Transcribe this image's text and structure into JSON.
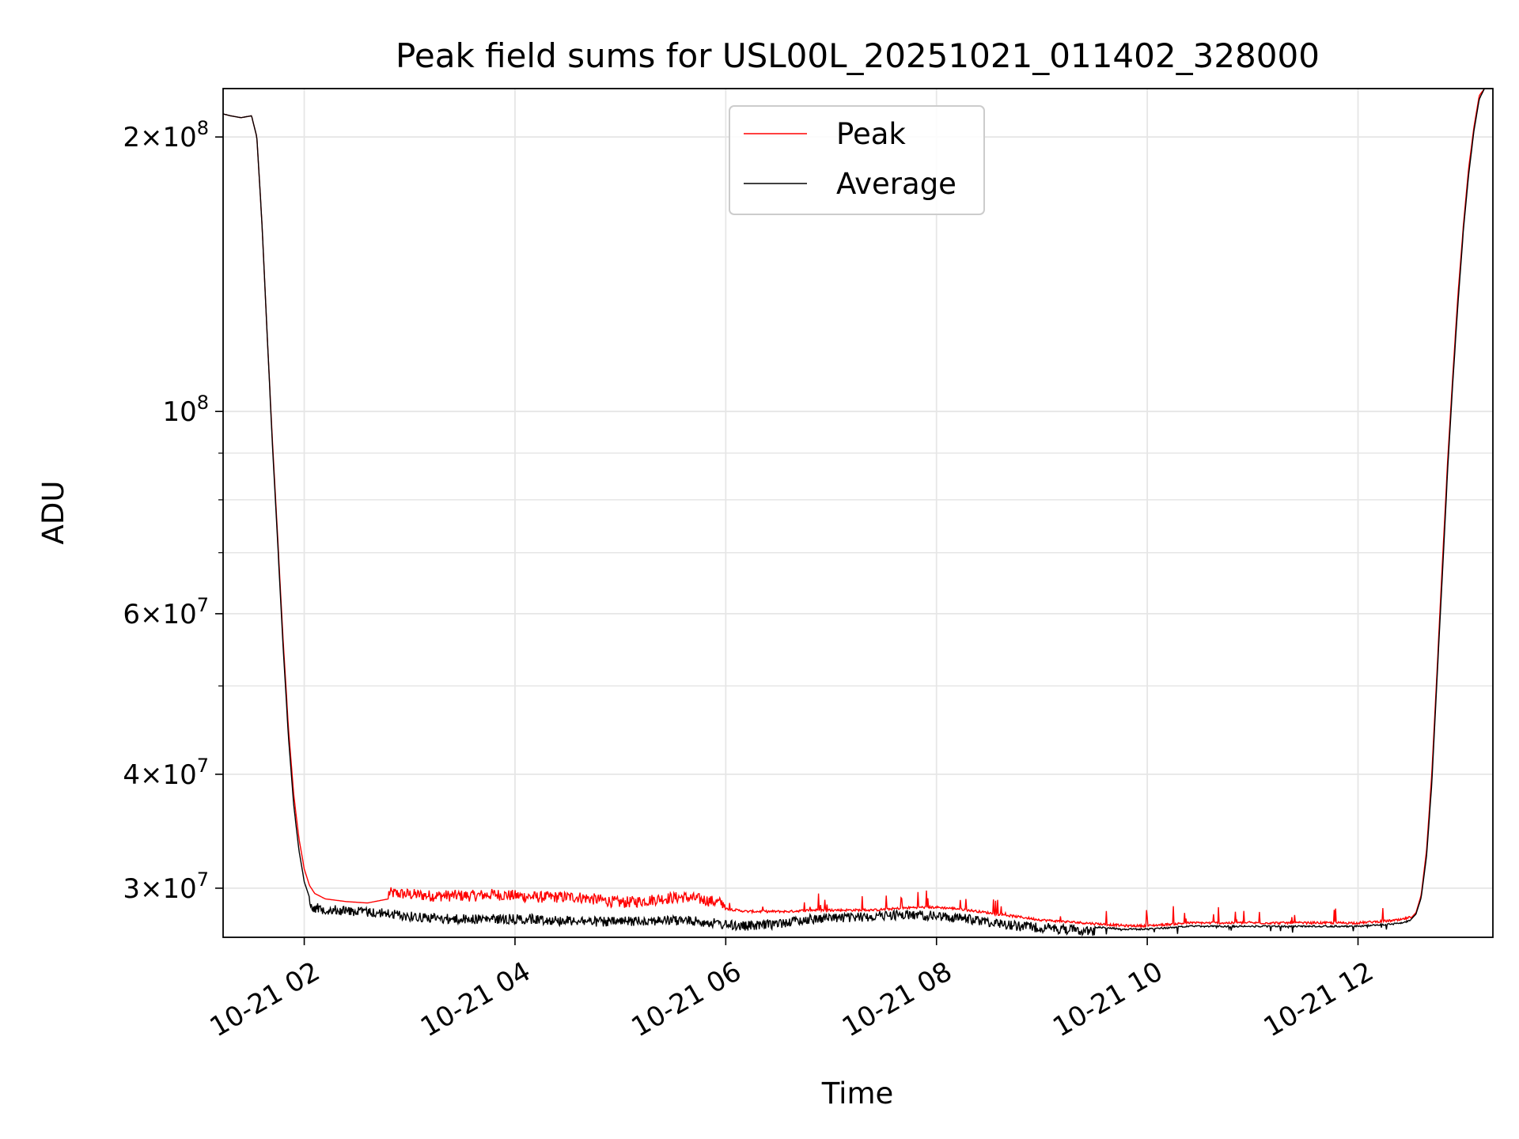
{
  "chart_data": {
    "type": "line",
    "title": "Peak field sums for USL00L_20251021_011402_328000",
    "xlabel": "Time",
    "ylabel": "ADU",
    "yscale": "log",
    "ylim": [
      26500000,
      226000000
    ],
    "xlim_hours": [
      1.23,
      13.28
    ],
    "grid": true,
    "legend_position": "upper center",
    "x_ticks": [
      {
        "hour": 2,
        "label": "10-21 02"
      },
      {
        "hour": 4,
        "label": "10-21 04"
      },
      {
        "hour": 6,
        "label": "10-21 06"
      },
      {
        "hour": 8,
        "label": "10-21 08"
      },
      {
        "hour": 10,
        "label": "10-21 10"
      },
      {
        "hour": 12,
        "label": "10-21 12"
      }
    ],
    "y_major_ticks": [
      {
        "value": 30000000,
        "mantissa": "3",
        "exponent": "7"
      },
      {
        "value": 40000000,
        "mantissa": "4",
        "exponent": "7"
      },
      {
        "value": 60000000,
        "mantissa": "6",
        "exponent": "7"
      },
      {
        "value": 100000000,
        "mantissa": "",
        "exponent": "8"
      },
      {
        "value": 200000000,
        "mantissa": "2",
        "exponent": "8"
      }
    ],
    "y_minor_ticks": [
      50000000,
      70000000,
      80000000,
      90000000
    ],
    "series": [
      {
        "name": "Peak",
        "color": "#ff0000",
        "x_hours": [
          1.23,
          1.3,
          1.4,
          1.5,
          1.55,
          1.6,
          1.65,
          1.7,
          1.75,
          1.8,
          1.85,
          1.9,
          1.95,
          2.0,
          2.05,
          2.1,
          2.2,
          2.4,
          2.6,
          2.8,
          3.0,
          3.2,
          3.4,
          3.6,
          3.8,
          4.0,
          4.2,
          4.4,
          4.6,
          4.8,
          5.0,
          5.2,
          5.4,
          5.6,
          5.8,
          6.0,
          6.2,
          6.4,
          6.6,
          6.8,
          7.0,
          7.2,
          7.4,
          7.6,
          7.8,
          8.0,
          8.2,
          8.4,
          8.6,
          8.8,
          9.0,
          9.2,
          9.4,
          9.6,
          9.8,
          10.0,
          10.2,
          10.4,
          10.6,
          10.8,
          11.0,
          11.2,
          11.4,
          11.6,
          11.8,
          12.0,
          12.2,
          12.4,
          12.5,
          12.55,
          12.6,
          12.65,
          12.7,
          12.75,
          12.8,
          12.85,
          12.9,
          12.95,
          13.0,
          13.05,
          13.1,
          13.15,
          13.2,
          13.28
        ],
        "values": [
          212000000,
          211000000,
          210000000,
          211000000,
          200000000,
          160000000,
          120000000,
          92000000,
          72000000,
          56000000,
          45000000,
          38000000,
          34000000,
          31500000,
          30200000,
          29600000,
          29200000,
          29000000,
          28900000,
          29200000,
          29100000,
          29000000,
          29000000,
          29000000,
          29100000,
          29000000,
          28900000,
          28900000,
          28900000,
          28700000,
          28500000,
          28600000,
          28800000,
          28900000,
          28700000,
          28400000,
          28200000,
          28200000,
          28200000,
          28300000,
          28300000,
          28300000,
          28300000,
          28400000,
          28500000,
          28500000,
          28400000,
          28200000,
          28000000,
          27800000,
          27600000,
          27500000,
          27400000,
          27300000,
          27200000,
          27200000,
          27300000,
          27400000,
          27400000,
          27400000,
          27400000,
          27400000,
          27400000,
          27400000,
          27400000,
          27400000,
          27500000,
          27600000,
          27800000,
          28200000,
          29500000,
          33000000,
          40000000,
          52000000,
          68000000,
          88000000,
          110000000,
          135000000,
          160000000,
          185000000,
          205000000,
          222000000,
          226000000,
          226000000
        ],
        "spike_values": [
          29900000,
          29800000,
          29600000,
          29400000,
          29300000,
          28900000,
          28700000,
          28600000,
          28700000
        ]
      },
      {
        "name": "Average",
        "color": "#000000",
        "x_hours": [
          1.23,
          1.3,
          1.4,
          1.5,
          1.55,
          1.6,
          1.65,
          1.7,
          1.75,
          1.8,
          1.85,
          1.9,
          1.95,
          2.0,
          2.05,
          2.1,
          2.2,
          2.4,
          2.6,
          2.8,
          3.0,
          3.2,
          3.4,
          3.6,
          3.8,
          4.0,
          4.2,
          4.4,
          4.6,
          4.8,
          5.0,
          5.2,
          5.4,
          5.6,
          5.8,
          6.0,
          6.2,
          6.4,
          6.6,
          6.8,
          7.0,
          7.2,
          7.4,
          7.6,
          7.8,
          8.0,
          8.2,
          8.4,
          8.6,
          8.8,
          9.0,
          9.2,
          9.4,
          9.6,
          9.8,
          10.0,
          10.2,
          10.4,
          10.6,
          10.8,
          11.0,
          11.2,
          11.4,
          11.6,
          11.8,
          12.0,
          12.2,
          12.4,
          12.5,
          12.55,
          12.6,
          12.65,
          12.7,
          12.75,
          12.8,
          12.85,
          12.9,
          12.95,
          13.0,
          13.05,
          13.1,
          13.15,
          13.2,
          13.28
        ],
        "values": [
          212000000,
          211000000,
          210000000,
          211000000,
          200000000,
          160000000,
          120000000,
          91000000,
          71000000,
          55000000,
          44000000,
          37000000,
          33000000,
          30500000,
          29300000,
          28900000,
          28800000,
          28700000,
          28600000,
          28500000,
          28300000,
          28200000,
          28100000,
          28100000,
          28100000,
          28100000,
          28100000,
          28000000,
          28000000,
          27900000,
          27900000,
          28000000,
          28000000,
          28000000,
          27900000,
          27700000,
          27600000,
          27700000,
          27900000,
          28100000,
          28200000,
          28200000,
          28300000,
          28400000,
          28400000,
          28300000,
          28200000,
          28000000,
          27800000,
          27600000,
          27500000,
          27400000,
          27300000,
          27200000,
          27100000,
          27100000,
          27200000,
          27300000,
          27300000,
          27300000,
          27300000,
          27300000,
          27300000,
          27300000,
          27300000,
          27300000,
          27400000,
          27500000,
          27700000,
          28100000,
          29300000,
          32500000,
          39000000,
          51000000,
          66000000,
          86000000,
          108000000,
          132000000,
          158000000,
          182000000,
          203000000,
          220000000,
          226000000,
          226000000
        ]
      }
    ]
  }
}
